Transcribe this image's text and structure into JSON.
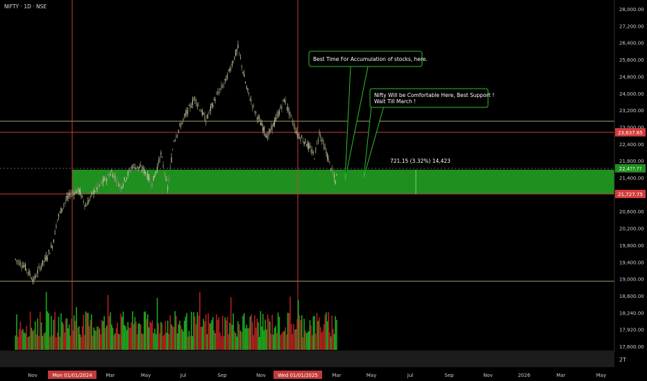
{
  "symbol_header": "NIFTY · 1D · NSE",
  "chart_data": {
    "type": "candlestick",
    "title": "NIFTY · 1D · NSE",
    "y_axis_ticks": [
      "28,000.00",
      "27,200.00",
      "26,400.00",
      "25,600.00",
      "24,800.00",
      "24,000.00",
      "23,200.00",
      "23,000.00",
      "22,400.00",
      "21,800.00",
      "21,400.00",
      "21,000.00",
      "20,600.00",
      "20,200.00",
      "19,800.00",
      "19,400.00",
      "19,000.00",
      "18,600.00",
      "18,240.00",
      "17,920.00",
      "17,600.00"
    ],
    "x_axis_ticks": [
      "Nov",
      "Mar",
      "May",
      "Jul",
      "Sep",
      "Nov",
      "Mar",
      "May",
      "Jul",
      "Sep",
      "Nov",
      "2026",
      "Mar",
      "May"
    ],
    "x_axis_highlights": [
      "Mon 01/01/2024",
      "Wed 01/01/2025"
    ],
    "price_labels": {
      "upper_red": "23,637.65",
      "current": "22,4??.??",
      "lower_red": "21,727.75"
    },
    "horizontal_lines": {
      "upper_red": 23637.65,
      "lower_red": 21727.75,
      "yellow_upper": 24000,
      "yellow_lower": 19240
    },
    "support_zone": {
      "low": 21727.75,
      "high": 22448.9
    },
    "vertical_lines": [
      "Mon 01/01/2024",
      "Wed 01/01/2025"
    ],
    "ylim": [
      17600,
      28400
    ],
    "close_path": [
      {
        "t": "2023-10-01",
        "v": 19700
      },
      {
        "t": "2023-10-15",
        "v": 19500
      },
      {
        "t": "2023-10-31",
        "v": 19050
      },
      {
        "t": "2023-11-08",
        "v": 19400
      },
      {
        "t": "2023-11-20",
        "v": 19750
      },
      {
        "t": "2023-11-30",
        "v": 20130
      },
      {
        "t": "2023-12-08",
        "v": 20950
      },
      {
        "t": "2023-12-18",
        "v": 21400
      },
      {
        "t": "2023-12-29",
        "v": 21730
      },
      {
        "t": "2024-01-12",
        "v": 21850
      },
      {
        "t": "2024-01-23",
        "v": 21350
      },
      {
        "t": "2024-02-05",
        "v": 21800
      },
      {
        "t": "2024-02-20",
        "v": 22100
      },
      {
        "t": "2024-03-05",
        "v": 22400
      },
      {
        "t": "2024-03-20",
        "v": 21950
      },
      {
        "t": "2024-04-08",
        "v": 22600
      },
      {
        "t": "2024-04-25",
        "v": 22500
      },
      {
        "t": "2024-05-10",
        "v": 22050
      },
      {
        "t": "2024-05-24",
        "v": 22950
      },
      {
        "t": "2024-06-04",
        "v": 21900
      },
      {
        "t": "2024-06-14",
        "v": 23400
      },
      {
        "t": "2024-07-01",
        "v": 24100
      },
      {
        "t": "2024-07-18",
        "v": 24700
      },
      {
        "t": "2024-08-05",
        "v": 24000
      },
      {
        "t": "2024-08-20",
        "v": 24700
      },
      {
        "t": "2024-09-05",
        "v": 25200
      },
      {
        "t": "2024-09-26",
        "v": 26250
      },
      {
        "t": "2024-10-10",
        "v": 25000
      },
      {
        "t": "2024-10-25",
        "v": 24200
      },
      {
        "t": "2024-11-13",
        "v": 23500
      },
      {
        "t": "2024-11-28",
        "v": 24100
      },
      {
        "t": "2024-12-10",
        "v": 24650
      },
      {
        "t": "2024-12-31",
        "v": 23600
      },
      {
        "t": "2025-01-15",
        "v": 23300
      },
      {
        "t": "2025-01-28",
        "v": 22900
      },
      {
        "t": "2025-02-05",
        "v": 23650
      },
      {
        "t": "2025-02-18",
        "v": 22900
      },
      {
        "t": "2025-03-03",
        "v": 22100
      },
      {
        "t": "2025-03-07",
        "v": 22450
      }
    ],
    "volume_note": "green and red daily volume bars"
  },
  "annotations": {
    "callout_1": "Best Time For Accumulation of stocks, here.",
    "callout_2_line1": "Nifty Will be Comfortable Here, Best Support !",
    "callout_2_line2": "Wait Till March !",
    "measure_label": "721.15 (3.32%) 14,423"
  },
  "scale_label": "2T",
  "colors": {
    "background": "#000000",
    "candle_up": "#c8c8a0",
    "zone": "#1f8f1f",
    "red_line": "#d23c3c",
    "yellow_line": "#b3a35a",
    "callout_border": "#2fbf2f",
    "vol_up": "#1fa81f",
    "vol_down": "#b02020"
  }
}
